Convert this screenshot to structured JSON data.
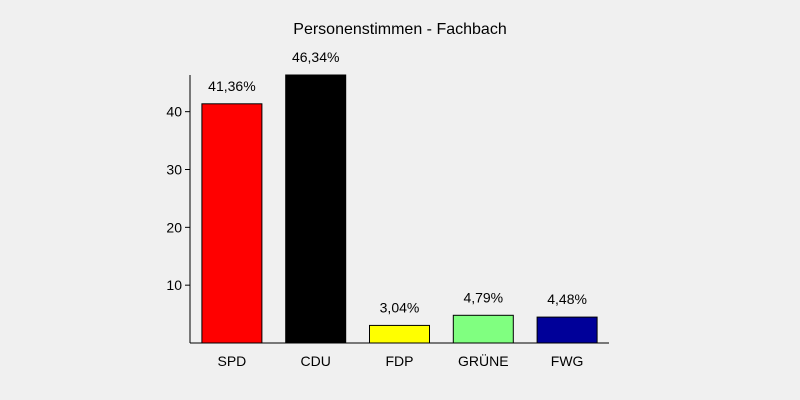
{
  "chart_data": {
    "type": "bar",
    "title": "Personenstimmen - Fachbach",
    "xlabel": "",
    "ylabel": "",
    "categories": [
      "SPD",
      "CDU",
      "FDP",
      "GRÜNE",
      "FWG"
    ],
    "values": [
      41.36,
      46.34,
      3.04,
      4.79,
      4.48
    ],
    "value_labels": [
      "41,36%",
      "46,34%",
      "3,04%",
      "4,79%",
      "4,48%"
    ],
    "colors": [
      "#ff0000",
      "#000000",
      "#ffff00",
      "#80ff80",
      "#000099"
    ],
    "ylim": [
      0,
      46.34
    ],
    "yticks": [
      10,
      20,
      30,
      40
    ],
    "grid": false,
    "legend": "none"
  }
}
